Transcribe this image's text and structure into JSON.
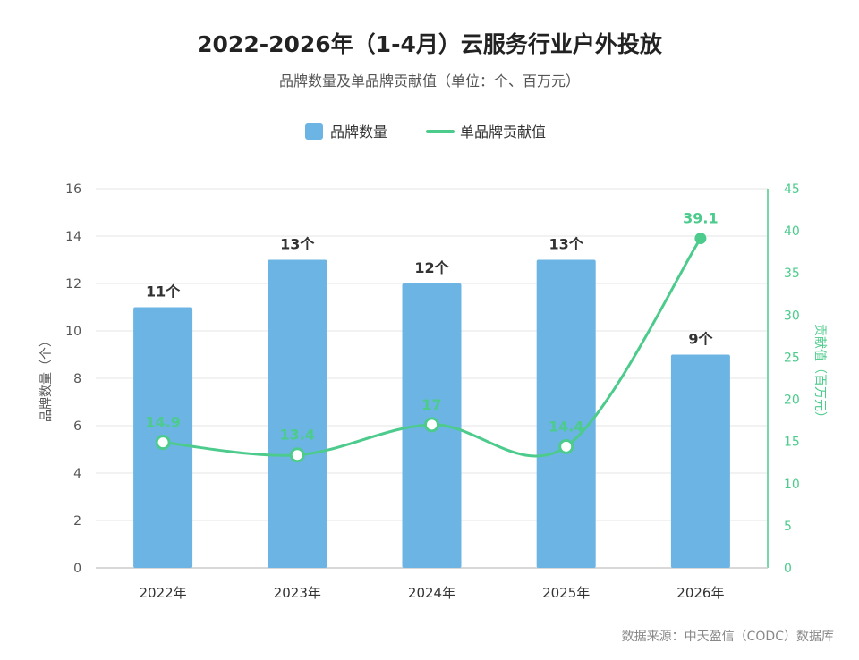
{
  "chart_data": {
    "type": "bar+line",
    "title": "2022-2026年（1-4月）云服务行业户外投放",
    "subtitle": "品牌数量及单品牌贡献值（单位：个、百万元）",
    "categories": [
      "2022年",
      "2023年",
      "2024年",
      "2025年",
      "2026年"
    ],
    "series": [
      {
        "name": "品牌数量",
        "type": "bar",
        "axis": "left",
        "values": [
          11,
          13,
          12,
          13,
          9
        ],
        "labels": [
          "11个",
          "13个",
          "12个",
          "13个",
          "9个"
        ],
        "color": "#6cb4e4"
      },
      {
        "name": "单品牌贡献值",
        "type": "line",
        "axis": "right",
        "values": [
          14.9,
          13.4,
          17,
          14.4,
          39.1
        ],
        "labels": [
          "14.9",
          "13.4",
          "17",
          "14.4",
          "39.1"
        ],
        "color": "#4ccb8c"
      }
    ],
    "y_left": {
      "label": "品牌数量（个）",
      "range": [
        0,
        16
      ],
      "ticks": [
        "0",
        "2",
        "4",
        "6",
        "8",
        "10",
        "12",
        "14",
        "16"
      ]
    },
    "y_right": {
      "label": "贡献值（百万元）",
      "range": [
        0,
        45
      ],
      "ticks": [
        "0",
        "5",
        "10",
        "15",
        "20",
        "25",
        "30",
        "35",
        "40",
        "45"
      ]
    },
    "grid": true,
    "legend_position": "top-center"
  },
  "source": "数据来源：中天盈信（CODC）数据库",
  "colors": {
    "bar": "#6cb4e4",
    "line": "#4ccb8c",
    "text": "#333333",
    "axis_text": "#555555",
    "grid": "#e6e6e6"
  }
}
